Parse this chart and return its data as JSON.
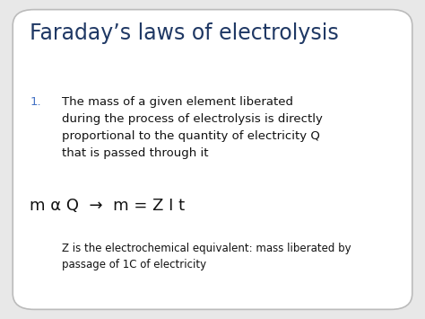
{
  "title": "Faraday’s laws of electrolysis",
  "title_color": "#1F3864",
  "title_fontsize": 17,
  "background_color": "#e8e8e8",
  "slide_bg": "#ffffff",
  "border_color": "#bbbbbb",
  "bullet_number": "1.",
  "bullet_color": "#4472C4",
  "bullet_fontsize": 9.5,
  "bullet_text": "The mass of a given element liberated\nduring the process of electrolysis is directly\nproportional to the quantity of electricity Q\nthat is passed through it",
  "text_color": "#111111",
  "formula_text": "m α Q  →  m = Z I t",
  "formula_fontsize": 13,
  "note_line1": "Z is the electrochemical equivalent: mass liberated by",
  "note_line2": "passage of 1C of electricity",
  "note_fontsize": 8.5
}
